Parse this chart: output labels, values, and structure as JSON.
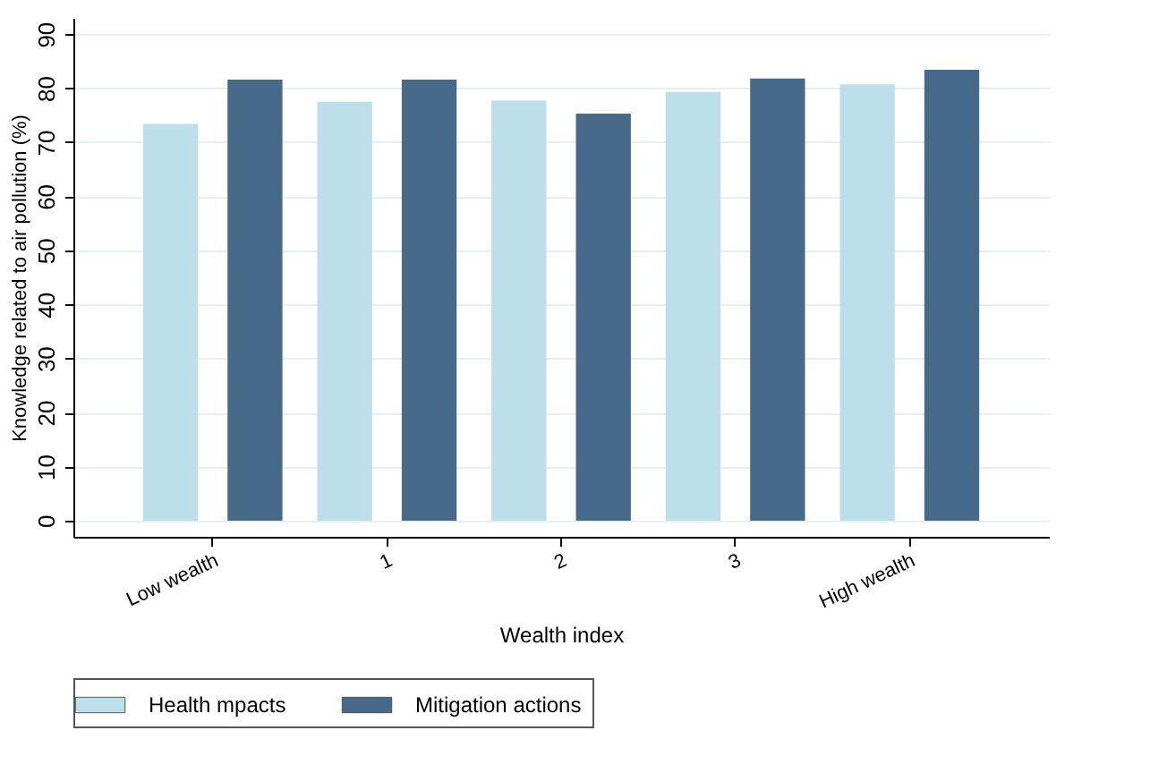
{
  "chart_data": {
    "type": "bar",
    "xlabel": "Wealth index",
    "ylabel": "Knowledge related to air pollution (%)",
    "categories": [
      "Low wealth",
      "1",
      "2",
      "3",
      "High wealth"
    ],
    "series": [
      {
        "name": "Health mpacts",
        "color": "#bddfe9",
        "values": [
          73.4,
          77.5,
          77.7,
          79.3,
          80.7
        ]
      },
      {
        "name": "Mitigation actions",
        "color": "#476a8b",
        "values": [
          81.6,
          81.6,
          75.3,
          81.8,
          83.4
        ]
      }
    ],
    "ylim": [
      -3,
      93
    ],
    "yticks": [
      0,
      10,
      20,
      30,
      40,
      50,
      60,
      70,
      80,
      90
    ],
    "grid": "y",
    "legend": "bottom"
  }
}
